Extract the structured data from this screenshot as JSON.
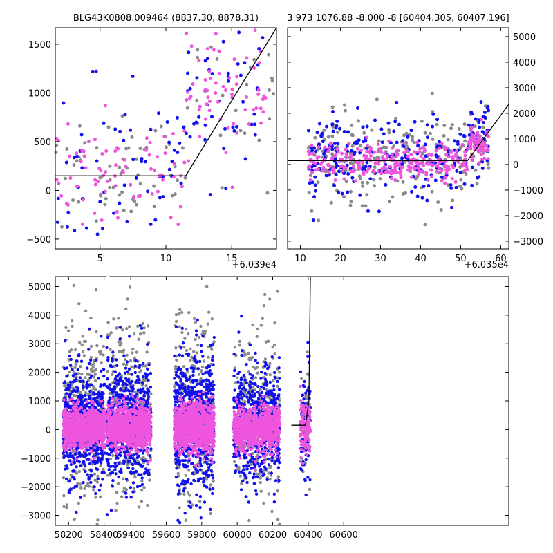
{
  "colors": {
    "gray": "#8a8a8a",
    "blue": "#1111ee",
    "pink": "#ee55dd",
    "model": "#000000"
  },
  "chart_data": [
    {
      "id": "top-left",
      "type": "scatter",
      "title": "BLG43K0808.009464 (8837.30, 8878.31)",
      "x_offset_label": "+6.039e4",
      "xlim": [
        1.6,
        18.4
      ],
      "ylim": [
        -600,
        1670
      ],
      "xticks": [
        5,
        10,
        15
      ],
      "yticks": [
        -500,
        0,
        500,
        1000,
        1500
      ],
      "ytick_side": "left",
      "model": {
        "x": [
          1.6,
          11.5,
          18.4
        ],
        "y": [
          150,
          150,
          1670
        ]
      },
      "scatter": {
        "gray": {
          "seed": 11,
          "n": 90,
          "segments": [
            {
              "x": [
                1.6,
                11.5
              ],
              "mean": 200,
              "sd": 250,
              "frac": 0.7
            },
            {
              "x": [
                11.5,
                18.4
              ],
              "mean": 900,
              "sd": 450,
              "frac": 0.3
            }
          ]
        },
        "blue": {
          "seed": 23,
          "n": 110,
          "segments": [
            {
              "x": [
                1.6,
                11.5
              ],
              "mean": 250,
              "sd": 400,
              "frac": 0.55
            },
            {
              "x": [
                11.5,
                17.5
              ],
              "mean": 1100,
              "sd": 400,
              "frac": 0.45
            }
          ]
        },
        "pink": {
          "seed": 37,
          "n": 140,
          "segments": [
            {
              "x": [
                1.6,
                11.5
              ],
              "mean": 180,
              "sd": 250,
              "frac": 0.55
            },
            {
              "x": [
                11.5,
                17.8
              ],
              "mean": 1000,
              "sd": 350,
              "frac": 0.45
            }
          ]
        }
      }
    },
    {
      "id": "top-right",
      "type": "scatter",
      "title": "3 973 1076.88 -8.000 -8 [60404.305, 60407.196]",
      "x_offset_label": "+6.035e4",
      "xlim": [
        6.8,
        62.0
      ],
      "ylim": [
        -3300,
        5350
      ],
      "xticks": [
        10,
        20,
        30,
        40,
        50,
        60
      ],
      "yticks": [
        -3000,
        -2000,
        -1000,
        0,
        1000,
        2000,
        3000,
        4000,
        5000
      ],
      "ytick_side": "right",
      "model": {
        "x": [
          6.8,
          51.7,
          62.0
        ],
        "y": [
          150,
          150,
          2350
        ]
      },
      "scatter": {
        "gray": {
          "seed": 41,
          "n": 260,
          "segments": [
            {
              "x": [
                12,
                51.7
              ],
              "mean": 200,
              "sd": 900,
              "frac": 0.85
            },
            {
              "x": [
                51.7,
                57
              ],
              "mean": 900,
              "sd": 600,
              "frac": 0.15
            }
          ]
        },
        "blue": {
          "seed": 53,
          "n": 260,
          "segments": [
            {
              "x": [
                12,
                51.7
              ],
              "mean": 300,
              "sd": 800,
              "frac": 0.85
            },
            {
              "x": [
                51.7,
                57
              ],
              "mean": 1000,
              "sd": 700,
              "frac": 0.15
            }
          ]
        },
        "pink": {
          "seed": 67,
          "n": 340,
          "segments": [
            {
              "x": [
                12,
                51.7
              ],
              "mean": 100,
              "sd": 300,
              "frac": 0.8
            },
            {
              "x": [
                51.7,
                57
              ],
              "mean": 800,
              "sd": 300,
              "frac": 0.2
            }
          ]
        }
      }
    },
    {
      "id": "bottom",
      "type": "scatter",
      "title": "",
      "x_offset_label": "",
      "xlim": [
        58125,
        60680
      ],
      "ylim": [
        -3350,
        5350
      ],
      "xticks": [
        58200,
        58400,
        59400,
        59600,
        59800,
        60000,
        60200,
        60400,
        60600
      ],
      "yticks": [
        -3000,
        -2000,
        -1000,
        0,
        1000,
        2000,
        3000,
        4000,
        5000
      ],
      "ytick_side": "left",
      "x_break": [
        58418,
        58450
      ],
      "break_offset": 850,
      "model": {
        "x": [
          60305,
          60384,
          60404,
          60412
        ],
        "y": [
          150,
          150,
          1000,
          5350
        ]
      },
      "scatter": {
        "gray": {
          "seed": 71,
          "n": 1300,
          "segments": [
            {
              "x": [
                58170,
                58405
              ],
              "mean": 500,
              "sd": 1500,
              "frac": 0.25
            },
            {
              "x": [
                59265,
                59515
              ],
              "mean": 700,
              "sd": 1600,
              "frac": 0.25
            },
            {
              "x": [
                59645,
                59870
              ],
              "mean": 600,
              "sd": 1600,
              "frac": 0.25
            },
            {
              "x": [
                59980,
                60240
              ],
              "mean": 500,
              "sd": 1500,
              "frac": 0.22
            },
            {
              "x": [
                60355,
                60412
              ],
              "mean": 300,
              "sd": 900,
              "frac": 0.03
            }
          ]
        },
        "blue": {
          "seed": 83,
          "n": 2600,
          "segments": [
            {
              "x": [
                58170,
                58405
              ],
              "mean": 200,
              "sd": 900,
              "frac": 0.24
            },
            {
              "x": [
                59265,
                59515
              ],
              "mean": 300,
              "sd": 1000,
              "frac": 0.25
            },
            {
              "x": [
                59645,
                59870
              ],
              "mean": 300,
              "sd": 1100,
              "frac": 0.27
            },
            {
              "x": [
                59980,
                60240
              ],
              "mean": 250,
              "sd": 950,
              "frac": 0.21
            },
            {
              "x": [
                60355,
                60412
              ],
              "mean": 400,
              "sd": 900,
              "frac": 0.03
            }
          ]
        },
        "pink": {
          "seed": 97,
          "n": 4200,
          "segments": [
            {
              "x": [
                58170,
                58405
              ],
              "mean": 50,
              "sd": 320,
              "frac": 0.24
            },
            {
              "x": [
                59265,
                59515
              ],
              "mean": 80,
              "sd": 340,
              "frac": 0.25
            },
            {
              "x": [
                59645,
                59870
              ],
              "mean": 80,
              "sd": 420,
              "frac": 0.26
            },
            {
              "x": [
                59980,
                60240
              ],
              "mean": 50,
              "sd": 340,
              "frac": 0.22
            },
            {
              "x": [
                60355,
                60412
              ],
              "mean": 150,
              "sd": 400,
              "frac": 0.03
            }
          ]
        }
      }
    }
  ]
}
